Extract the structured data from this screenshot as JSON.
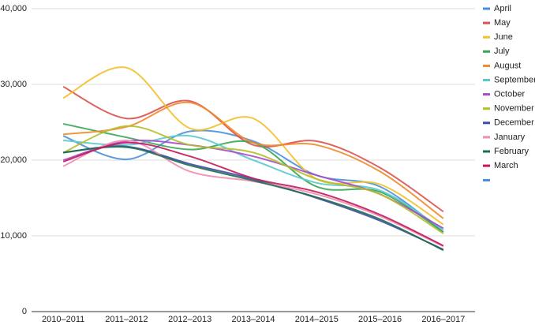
{
  "chart_data": {
    "type": "line",
    "categories": [
      "2010–2011",
      "2011–2012",
      "2012–2013",
      "2013–2014",
      "2014–2015",
      "2015–2016",
      "2016–2017"
    ],
    "series": [
      {
        "name": "April",
        "color": "#4a90d9",
        "values": [
          23200,
          20100,
          23800,
          22500,
          18000,
          16500,
          10500
        ]
      },
      {
        "name": "May",
        "color": "#d9534f",
        "values": [
          29700,
          25500,
          27800,
          22000,
          22500,
          19000,
          13200
        ]
      },
      {
        "name": "June",
        "color": "#f2c12e",
        "values": [
          28200,
          32200,
          24200,
          25500,
          17500,
          16800,
          11500
        ]
      },
      {
        "name": "July",
        "color": "#3aa655",
        "values": [
          24800,
          23000,
          21400,
          22300,
          16500,
          15800,
          10500
        ]
      },
      {
        "name": "August",
        "color": "#ef8a2c",
        "values": [
          23400,
          24400,
          27600,
          22300,
          22000,
          18500,
          12300
        ]
      },
      {
        "name": "September",
        "color": "#5bc8d0",
        "values": [
          22600,
          22000,
          23200,
          20000,
          17000,
          16000,
          10800
        ]
      },
      {
        "name": "October",
        "color": "#a64ac9",
        "values": [
          20000,
          22500,
          22000,
          20500,
          18000,
          15500,
          11000
        ]
      },
      {
        "name": "November",
        "color": "#b5bf2a",
        "values": [
          21000,
          24500,
          22000,
          21000,
          17500,
          15500,
          10300
        ]
      },
      {
        "name": "December",
        "color": "#3b4da8",
        "values": [
          21000,
          21800,
          19500,
          17500,
          15000,
          12000,
          8200
        ]
      },
      {
        "name": "January",
        "color": "#f08cb4",
        "values": [
          19200,
          22600,
          18500,
          17200,
          15500,
          12600,
          8600
        ]
      },
      {
        "name": "February",
        "color": "#1e6e4a",
        "values": [
          21000,
          21700,
          19300,
          17300,
          15100,
          12200,
          8100
        ]
      },
      {
        "name": "March",
        "color": "#c2185b",
        "values": [
          19800,
          22300,
          20500,
          17600,
          15800,
          12800,
          8700
        ]
      }
    ],
    "ylim": [
      0,
      40000
    ],
    "yticks": [
      0,
      {
        "value": 10000,
        "label": "10,000"
      },
      {
        "value": 20000,
        "label": "20,000"
      },
      {
        "value": 30000,
        "label": "30,000"
      },
      {
        "value": 40000,
        "label": "40,000"
      }
    ],
    "grid": true,
    "legend": "right"
  }
}
